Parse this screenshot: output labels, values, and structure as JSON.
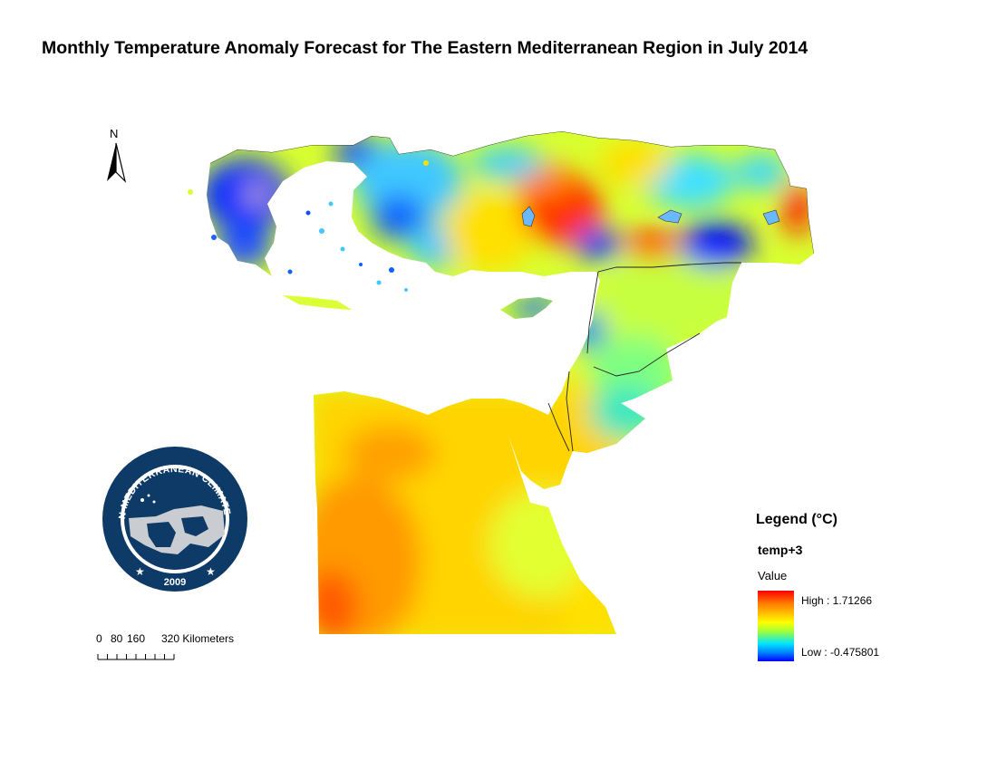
{
  "title": "Monthly Temperature Anomaly Forecast for The Eastern Mediterranean Region in July 2014",
  "north_label": "N",
  "logo": {
    "ring_text": "EASTERN MEDITERRANEAN CLIMATE CENTRE",
    "year": "2009",
    "colors": {
      "navy": "#0d3a66",
      "grey": "#c9cdd2"
    }
  },
  "scale_bar": {
    "labels": [
      "0",
      "80",
      "160",
      "320 Kilometers"
    ],
    "ticks_km": [
      0,
      40,
      80,
      120,
      160,
      200,
      240,
      280,
      320
    ]
  },
  "legend": {
    "title": "Legend (°C)",
    "layer": "temp+3",
    "field": "Value",
    "high_label": "High : 1.71266",
    "low_label": "Low : -0.475801",
    "high_value": 1.71266,
    "low_value": -0.475801,
    "colors": [
      "#ff0000",
      "#ff7a00",
      "#ffff00",
      "#9cff3a",
      "#00e5ff",
      "#0080ff",
      "#0000ff"
    ]
  }
}
